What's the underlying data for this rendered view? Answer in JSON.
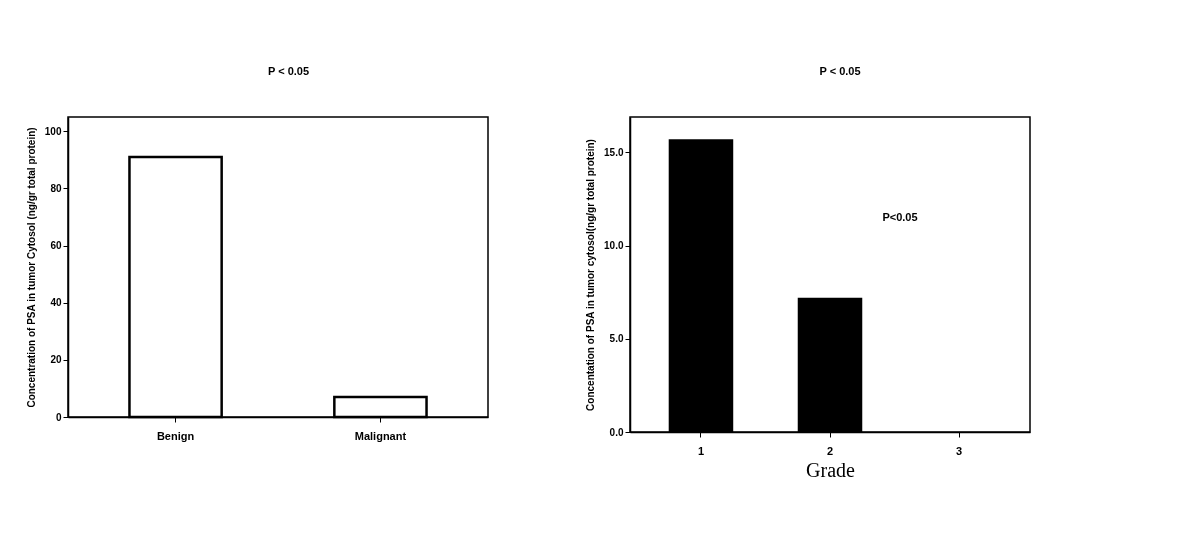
{
  "chart_data": [
    {
      "type": "bar",
      "categories": [
        "Benign",
        "Malignant"
      ],
      "values": [
        91,
        7
      ],
      "color": "#ffffff",
      "ylabel": "Concentration of  PSA in tumor Cytosol (ng/gr total protein)",
      "ylim": [
        0,
        105
      ],
      "yticks": [
        0,
        20,
        40,
        60,
        80,
        100
      ],
      "annotations": [
        "P < 0.05"
      ],
      "grid": false
    },
    {
      "type": "bar",
      "categories": [
        "1",
        "2",
        "3"
      ],
      "values": [
        15.7,
        7.2,
        0
      ],
      "color": "#000000",
      "xlabel": "Grade",
      "ylabel": "Concentation of PSA in tumor cytosol(ng/gr total protein)",
      "ylim": [
        0,
        16.9
      ],
      "yticks": [
        {
          "value": 0,
          "label": "0.0"
        },
        {
          "value": 5,
          "label": "5.0"
        },
        {
          "value": 10,
          "label": "10.0"
        },
        {
          "value": 15,
          "label": "15.0"
        }
      ],
      "annotations": [
        "P < 0.05",
        "P<0.05"
      ],
      "grid": false
    }
  ]
}
